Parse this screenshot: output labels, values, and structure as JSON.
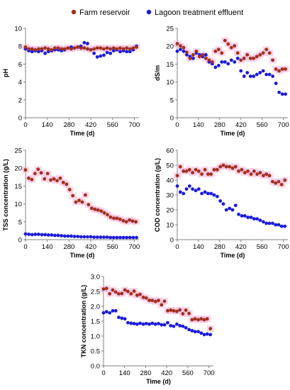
{
  "legend": {
    "items": [
      {
        "label": "Farm reservoir",
        "color": "#a0301e"
      },
      {
        "label": "Lagoon treatment effluent",
        "color": "#1a1adc"
      }
    ]
  },
  "colors": {
    "farm": "#a0301e",
    "lagoon": "#1a1adc",
    "farm_glow": "#f4b6da",
    "axis": "#808080"
  },
  "chart_data": [
    {
      "type": "scatter",
      "id": "ph",
      "ylabel": "pH",
      "xlabel": "Time (d)",
      "xlim": [
        0,
        730
      ],
      "xticks": [
        0,
        140,
        280,
        420,
        560,
        700
      ],
      "ylim": [
        0,
        10
      ],
      "yticks": [
        0,
        2,
        4,
        6,
        8,
        10
      ],
      "ytick_labels": [
        "0",
        "2",
        "4",
        "6",
        "8",
        "10"
      ],
      "series": [
        {
          "key": "farm",
          "x": [
            0,
            21,
            42,
            63,
            84,
            105,
            126,
            147,
            168,
            189,
            210,
            231,
            252,
            273,
            294,
            315,
            336,
            357,
            378,
            399,
            420,
            441,
            462,
            483,
            504,
            525,
            546,
            567,
            588,
            609,
            630,
            651,
            672,
            693,
            714
          ],
          "y": [
            7.9,
            7.7,
            7.7,
            7.6,
            7.7,
            7.7,
            7.8,
            7.7,
            7.6,
            7.8,
            7.8,
            7.7,
            7.7,
            7.8,
            7.7,
            7.8,
            7.9,
            7.8,
            7.8,
            7.7,
            7.6,
            7.7,
            7.8,
            7.8,
            7.7,
            7.8,
            7.7,
            7.8,
            7.7,
            7.8,
            7.7,
            7.8,
            7.7,
            7.8,
            7.9
          ]
        },
        {
          "key": "lagoon",
          "x": [
            0,
            21,
            42,
            63,
            84,
            105,
            126,
            147,
            168,
            189,
            210,
            231,
            252,
            273,
            294,
            315,
            336,
            357,
            378,
            399,
            420,
            441,
            462,
            483,
            504,
            525,
            546,
            567,
            588,
            609,
            630,
            651,
            672,
            693,
            714
          ],
          "y": [
            7.7,
            7.5,
            7.4,
            7.5,
            7.4,
            7.5,
            7.2,
            7.4,
            7.5,
            7.6,
            7.6,
            7.5,
            7.6,
            7.8,
            7.9,
            7.8,
            7.9,
            8.0,
            8.4,
            8.3,
            7.6,
            7.2,
            6.8,
            6.9,
            7.0,
            7.3,
            7.2,
            7.5,
            7.6,
            7.4,
            7.5,
            7.4,
            7.4,
            7.6,
            8.0
          ]
        }
      ]
    },
    {
      "type": "scatter",
      "id": "ec",
      "ylabel": "dS/m",
      "xlabel": "Time (d)",
      "xlim": [
        0,
        730
      ],
      "xticks": [
        0,
        140,
        280,
        420,
        560,
        700
      ],
      "ylim": [
        0,
        25
      ],
      "yticks": [
        0,
        5,
        10,
        15,
        20,
        25
      ],
      "ytick_labels": [
        "0",
        "5",
        "10",
        "15",
        "20",
        "25"
      ],
      "series": [
        {
          "key": "farm",
          "x": [
            0,
            21,
            42,
            63,
            84,
            105,
            126,
            147,
            168,
            189,
            210,
            231,
            252,
            273,
            294,
            315,
            336,
            357,
            378,
            399,
            420,
            441,
            462,
            483,
            504,
            525,
            546,
            567,
            588,
            609,
            630,
            651,
            672,
            693,
            714
          ],
          "y": [
            20.7,
            20.1,
            19.6,
            18.3,
            16.6,
            17.6,
            18.6,
            17.1,
            17.6,
            16.6,
            16.1,
            15.6,
            18.6,
            19.1,
            18.1,
            21.6,
            20.6,
            19.6,
            20.1,
            18.1,
            16.1,
            16.6,
            17.6,
            16.6,
            16.6,
            17.1,
            17.6,
            18.1,
            19.1,
            18.1,
            16.1,
            13.6,
            13.1,
            13.6,
            13.6
          ]
        },
        {
          "key": "lagoon",
          "x": [
            0,
            21,
            42,
            63,
            84,
            105,
            126,
            147,
            168,
            189,
            210,
            231,
            252,
            273,
            294,
            315,
            336,
            357,
            378,
            399,
            420,
            441,
            462,
            483,
            504,
            525,
            546,
            567,
            588,
            609,
            630,
            651,
            672,
            693,
            714
          ],
          "y": [
            18.6,
            19.1,
            18.6,
            17.6,
            17.1,
            16.6,
            18.1,
            17.6,
            17.1,
            17.6,
            15.6,
            15.1,
            14.1,
            14.6,
            15.6,
            15.6,
            15.1,
            16.1,
            15.6,
            16.6,
            13.1,
            11.6,
            12.6,
            11.6,
            11.6,
            12.1,
            12.6,
            13.1,
            12.1,
            12.1,
            11.6,
            9.6,
            7.1,
            6.6,
            6.6
          ]
        }
      ]
    },
    {
      "type": "scatter",
      "id": "tss",
      "ylabel": "TSS concentration (g/L)",
      "xlabel": "Time (d)",
      "xlim": [
        0,
        730
      ],
      "xticks": [
        0,
        140,
        280,
        420,
        560,
        700
      ],
      "ylim": [
        0,
        25
      ],
      "yticks": [
        0,
        5,
        10,
        15,
        20,
        25
      ],
      "ytick_labels": [
        "0",
        "5",
        "10",
        "15",
        "20",
        "25"
      ],
      "series": [
        {
          "key": "farm",
          "x": [
            0,
            20,
            41,
            61,
            81,
            101,
            122,
            142,
            162,
            183,
            203,
            223,
            243,
            264,
            284,
            304,
            324,
            345,
            365,
            385,
            405,
            426,
            446,
            466,
            487,
            507,
            527,
            547,
            568,
            588,
            608,
            629,
            649,
            669,
            689,
            710
          ],
          "y": [
            19.5,
            17.2,
            16.8,
            18.5,
            19.7,
            18.7,
            17.0,
            18.5,
            16.7,
            17.0,
            16.5,
            17.2,
            16.0,
            15.5,
            14.0,
            12.3,
            10.5,
            11.0,
            10.5,
            12.5,
            9.8,
            8.8,
            8.5,
            8.3,
            8.0,
            7.5,
            7.0,
            6.3,
            6.0,
            6.0,
            5.7,
            5.3,
            5.0,
            5.5,
            5.2,
            5.0
          ]
        },
        {
          "key": "lagoon",
          "x": [
            0,
            21,
            42,
            63,
            84,
            105,
            126,
            147,
            168,
            189,
            210,
            231,
            252,
            273,
            294,
            315,
            336,
            357,
            378,
            399,
            420,
            441,
            462,
            483,
            504,
            525,
            546,
            567,
            588,
            609,
            630,
            651,
            672,
            693,
            714
          ],
          "y": [
            1.6,
            1.5,
            1.4,
            1.5,
            1.5,
            1.4,
            1.4,
            1.3,
            1.3,
            1.2,
            1.2,
            1.1,
            1.0,
            1.0,
            1.0,
            0.9,
            0.9,
            0.8,
            0.8,
            0.8,
            0.8,
            0.7,
            0.7,
            0.7,
            0.7,
            0.7,
            0.6,
            0.6,
            0.6,
            0.6,
            0.6,
            0.6,
            0.6,
            0.6,
            0.6
          ]
        }
      ]
    },
    {
      "type": "scatter",
      "id": "cod",
      "ylabel": "COD concentration (g/L)",
      "xlabel": "Time (d)",
      "xlim": [
        0,
        730
      ],
      "xticks": [
        0,
        140,
        280,
        420,
        560,
        700
      ],
      "ylim": [
        0,
        60
      ],
      "yticks": [
        0,
        10,
        20,
        30,
        40,
        50,
        60
      ],
      "ytick_labels": [
        "0",
        "10",
        "20",
        "30",
        "40",
        "50",
        "60"
      ],
      "series": [
        {
          "key": "farm",
          "x": [
            0,
            20,
            41,
            61,
            81,
            101,
            122,
            142,
            162,
            183,
            203,
            223,
            243,
            264,
            284,
            304,
            324,
            345,
            365,
            385,
            405,
            426,
            446,
            466,
            487,
            507,
            527,
            547,
            568,
            588,
            608,
            629,
            649,
            669,
            689,
            710
          ],
          "y": [
            43,
            49,
            46,
            46,
            47,
            45,
            47,
            46,
            44,
            47,
            44,
            44,
            47,
            47,
            49,
            50,
            49,
            49,
            48,
            49,
            46,
            47,
            45,
            46,
            44,
            46,
            44,
            45,
            43,
            44,
            43,
            39,
            38,
            39,
            37,
            40
          ]
        },
        {
          "key": "lagoon",
          "x": [
            0,
            20,
            41,
            61,
            81,
            101,
            122,
            142,
            162,
            183,
            203,
            223,
            243,
            264,
            284,
            304,
            324,
            345,
            365,
            385,
            405,
            426,
            446,
            466,
            487,
            507,
            527,
            547,
            568,
            588,
            608,
            629,
            649,
            669,
            689,
            710
          ],
          "y": [
            36,
            32,
            31,
            34,
            36,
            34,
            33,
            34,
            31,
            32,
            31,
            31,
            30,
            29,
            26,
            24,
            20,
            21,
            20,
            23,
            17,
            16,
            16,
            15,
            15,
            14,
            14,
            13,
            12,
            11,
            11,
            11,
            10,
            10,
            9,
            9
          ]
        }
      ]
    },
    {
      "type": "scatter",
      "id": "tkn",
      "ylabel": "TKN concentration (g/L)",
      "xlabel": "Time (d)",
      "xlim": [
        0,
        730
      ],
      "xticks": [
        0,
        140,
        280,
        420,
        560,
        700
      ],
      "ylim": [
        0,
        3.0
      ],
      "yticks": [
        0,
        0.5,
        1.0,
        1.5,
        2.0,
        2.5,
        3.0
      ],
      "ytick_labels": [
        "0.0",
        "0.5",
        "1.0",
        "1.5",
        "2.0",
        "2.5",
        "3.0"
      ],
      "series": [
        {
          "key": "farm",
          "x": [
            0,
            20,
            41,
            61,
            81,
            101,
            122,
            142,
            162,
            183,
            203,
            223,
            243,
            264,
            284,
            304,
            324,
            345,
            365,
            385,
            405,
            426,
            446,
            466,
            487,
            507,
            527,
            547,
            568,
            588,
            608,
            629,
            649,
            669,
            689,
            710
          ],
          "y": [
            2.58,
            2.6,
            2.42,
            2.55,
            2.48,
            2.42,
            2.43,
            2.55,
            2.5,
            2.42,
            2.51,
            2.37,
            2.4,
            2.3,
            2.28,
            2.2,
            2.2,
            2.16,
            2.2,
            2.05,
            2.17,
            1.85,
            1.87,
            1.85,
            1.83,
            1.88,
            1.75,
            1.87,
            1.76,
            1.55,
            1.58,
            1.55,
            1.58,
            1.55,
            1.58,
            1.25
          ]
        },
        {
          "key": "lagoon",
          "x": [
            0,
            20,
            41,
            61,
            81,
            101,
            122,
            142,
            162,
            183,
            203,
            223,
            243,
            264,
            284,
            304,
            324,
            345,
            365,
            385,
            405,
            426,
            446,
            466,
            487,
            507,
            527,
            547,
            568,
            588,
            608,
            629,
            649,
            669,
            689,
            710
          ],
          "y": [
            1.78,
            1.82,
            1.78,
            1.85,
            1.85,
            1.63,
            1.6,
            1.58,
            1.45,
            1.43,
            1.42,
            1.4,
            1.43,
            1.4,
            1.42,
            1.4,
            1.43,
            1.4,
            1.42,
            1.38,
            1.38,
            1.45,
            1.35,
            1.33,
            1.4,
            1.35,
            1.33,
            1.28,
            1.22,
            1.18,
            1.15,
            1.15,
            1.1,
            1.05,
            1.07,
            1.05
          ]
        }
      ]
    }
  ]
}
